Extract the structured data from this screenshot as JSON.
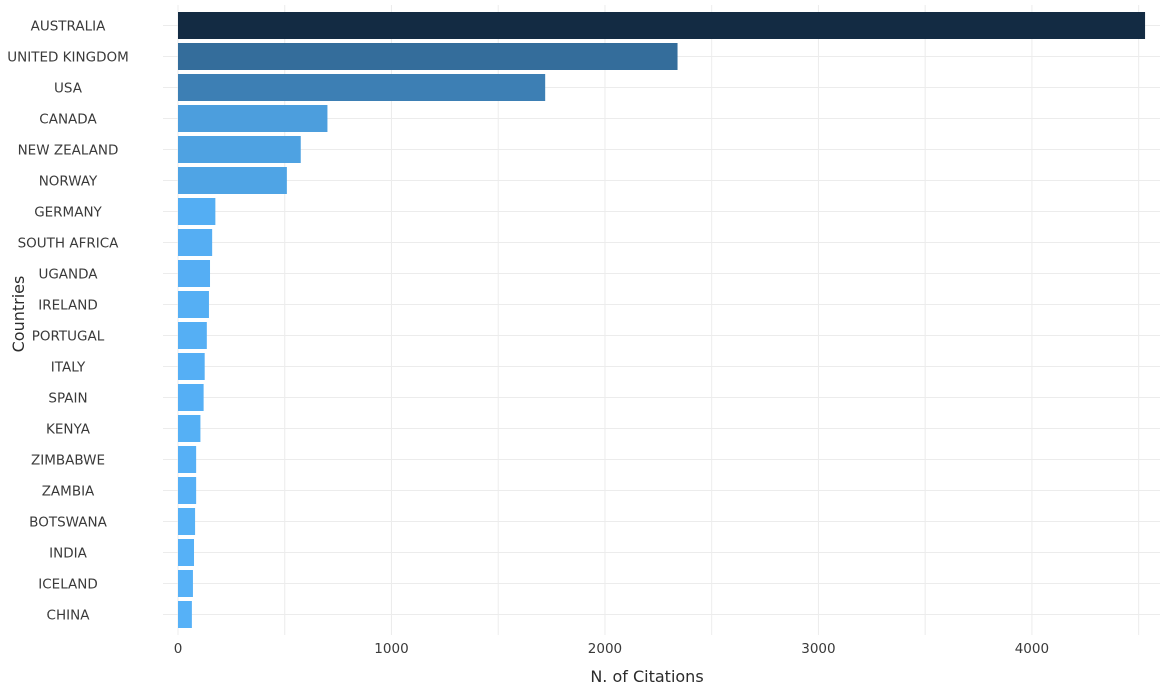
{
  "chart_data": {
    "type": "bar",
    "orientation": "horizontal",
    "xlabel": "N. of Citations",
    "ylabel": "Countries",
    "xlim": [
      0,
      4600
    ],
    "x_ticks": [
      0,
      1000,
      2000,
      3000,
      4000
    ],
    "grid": true,
    "categories": [
      "AUSTRALIA",
      "UNITED KINGDOM",
      "USA",
      "CANADA",
      "NEW ZEALAND",
      "NORWAY",
      "GERMANY",
      "SOUTH AFRICA",
      "UGANDA",
      "IRELAND",
      "PORTUGAL",
      "ITALY",
      "SPAIN",
      "KENYA",
      "ZIMBABWE",
      "ZAMBIA",
      "BOTSWANA",
      "INDIA",
      "ICELAND",
      "CHINA"
    ],
    "values": [
      4530,
      2340,
      1720,
      700,
      575,
      510,
      175,
      160,
      150,
      145,
      135,
      125,
      120,
      105,
      85,
      85,
      80,
      75,
      70,
      65
    ],
    "colors": {
      "low": "#56b1f7",
      "high": "#132b43"
    }
  }
}
